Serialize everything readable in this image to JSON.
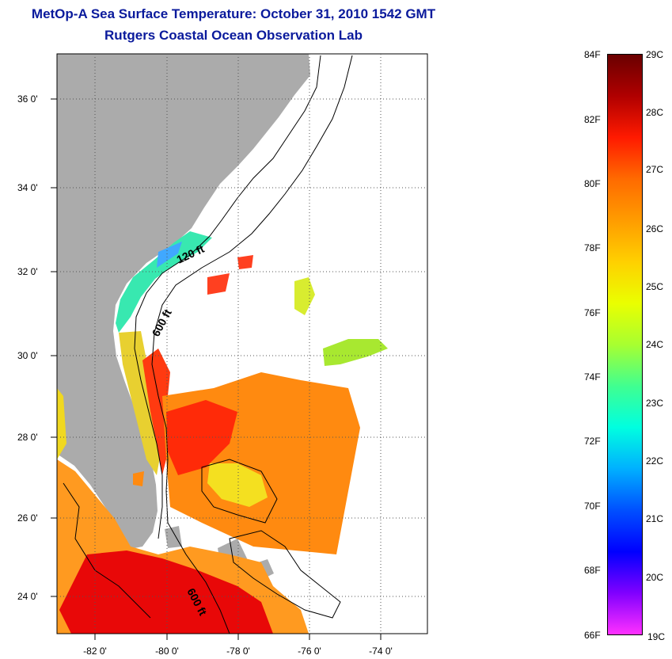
{
  "title": "MetOp-A Sea Surface Temperature:  October 31, 2010 1542 GMT",
  "subtitle": "Rutgers Coastal Ocean Observation Lab",
  "map": {
    "lat_labels": [
      "36 0'",
      "34 0'",
      "32 0'",
      "30 0'",
      "28 0'",
      "26 0'",
      "24 0'"
    ],
    "lon_labels": [
      "-82 0'",
      "-80 0'",
      "-78 0'",
      "-76 0'",
      "-74 0'"
    ],
    "isobath_labels": [
      "120 ft",
      "600 ft",
      "600 ft"
    ],
    "colors": {
      "land": "#ababab",
      "grid": "#666666"
    }
  },
  "colorbar": {
    "fahrenheit": [
      "84F",
      "82F",
      "80F",
      "78F",
      "76F",
      "74F",
      "72F",
      "70F",
      "68F",
      "66F"
    ],
    "celsius": [
      "29C",
      "28C",
      "27C",
      "26C",
      "25C",
      "24C",
      "23C",
      "22C",
      "21C",
      "20C",
      "19C"
    ],
    "gradient": [
      "#6a0000",
      "#b00000",
      "#ff1a00",
      "#ff6a00",
      "#ff9c00",
      "#ffd000",
      "#eaff00",
      "#a8ff30",
      "#40ff90",
      "#00ffe0",
      "#00b0ff",
      "#0050ff",
      "#0000ff",
      "#8000ff",
      "#ff30ff"
    ]
  }
}
